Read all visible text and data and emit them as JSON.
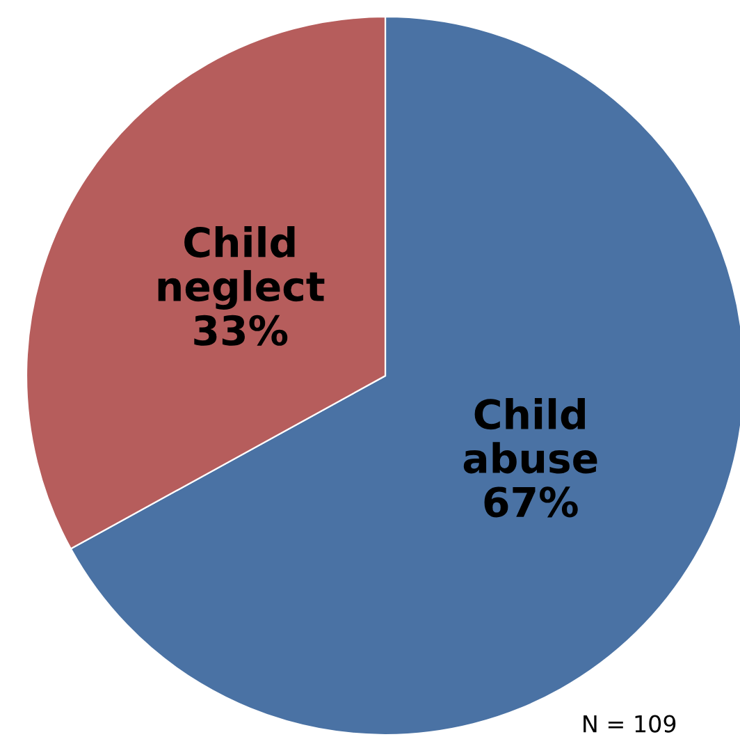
{
  "chart_data": {
    "type": "pie",
    "categories": [
      "Child abuse",
      "Child neglect"
    ],
    "values": [
      67,
      33
    ],
    "value_labels": [
      "67%",
      "33%"
    ],
    "colors": [
      "#4a72a4",
      "#b65d5c"
    ],
    "annotations": [
      "N = 109"
    ]
  }
}
